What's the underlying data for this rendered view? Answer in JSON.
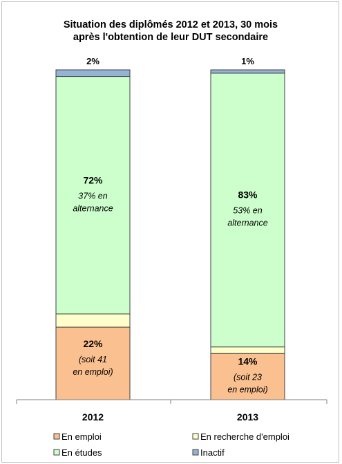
{
  "chart_data": {
    "type": "bar",
    "stacked": true,
    "title": "Situation des diplômés 2012 et 2013, 30 mois après l'obtention de leur DUT secondaire",
    "title_lines": [
      "Situation des diplômés  2012 et 2013, 30 mois",
      "après l'obtention de leur DUT secondaire"
    ],
    "categories": [
      "2012",
      "2013"
    ],
    "ylim": [
      0,
      100
    ],
    "grid": false,
    "legend_position": "bottom",
    "series": [
      {
        "name": "En emploi",
        "color": "#fac090",
        "values": [
          22,
          14
        ],
        "labels": [
          "22%",
          "14%"
        ],
        "notes": [
          [
            "(soit 41",
            "en emploi)"
          ],
          [
            "(soit  23",
            "en emploi)"
          ]
        ]
      },
      {
        "name": "En recherche d'emploi",
        "color": "#ffffcc",
        "values": [
          4,
          2
        ],
        "labels": [
          "4%",
          "2%"
        ]
      },
      {
        "name": "En études",
        "color": "#ccffcc",
        "values": [
          72,
          83
        ],
        "labels": [
          "72%",
          "83%"
        ],
        "notes": [
          [
            "37% en",
            "alternance"
          ],
          [
            "53% en",
            "alternance"
          ]
        ]
      },
      {
        "name": "Inactif",
        "color": "#95b3d7",
        "values": [
          2,
          1
        ],
        "labels": [
          "2%",
          "1%"
        ]
      }
    ],
    "legend_items": [
      {
        "name": "En emploi",
        "color": "#fac090"
      },
      {
        "name": "En recherche d'emploi",
        "color": "#ffffcc"
      },
      {
        "name": "En études",
        "color": "#ccffcc"
      },
      {
        "name": "Inactif",
        "color": "#95b3d7"
      }
    ]
  }
}
